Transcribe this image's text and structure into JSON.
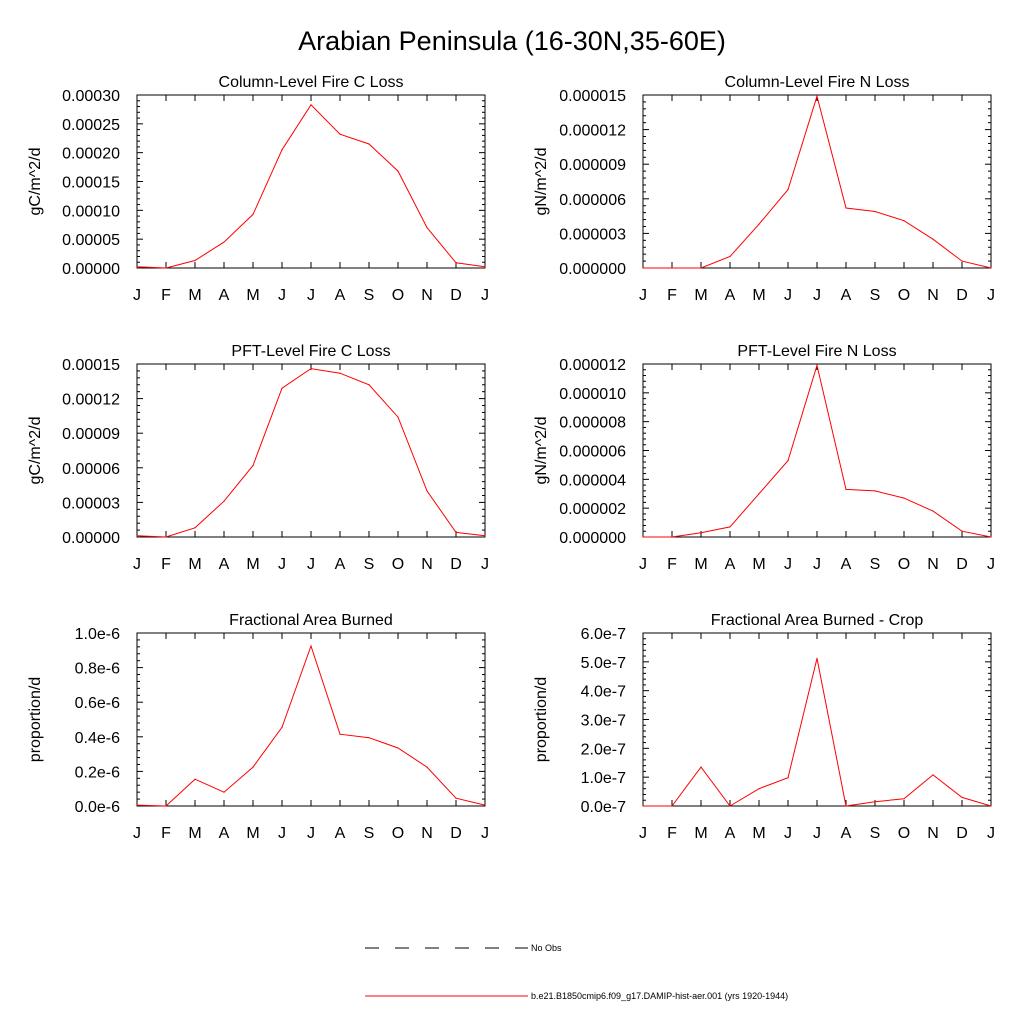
{
  "page": {
    "main_title": "Arabian Peninsula (16-30N,35-60E)"
  },
  "legend": {
    "entries": [
      {
        "label": "No Obs",
        "style": "dashed",
        "color": "#000000"
      },
      {
        "label": "b.e21.B1850cmip6.f09_g17.DAMIP-hist-aer.001 (yrs 1920-1944)",
        "style": "solid",
        "color": "#ff0000"
      }
    ]
  },
  "colors": {
    "series": "#ff0000",
    "axis": "#000000"
  },
  "chart_data": [
    {
      "type": "line",
      "title": "Column-Level Fire C Loss",
      "xlabel": "",
      "ylabel": "gC/m^2/d",
      "categories": [
        "J",
        "F",
        "M",
        "A",
        "M",
        "J",
        "J",
        "A",
        "S",
        "O",
        "N",
        "D",
        "J"
      ],
      "ylim": [
        0,
        0.0003
      ],
      "yticks": [
        "0.00000",
        "0.00005",
        "0.00010",
        "0.00015",
        "0.00020",
        "0.00025",
        "0.00030"
      ],
      "series": [
        {
          "values": [
            2e-06,
            0.0,
            1.3e-05,
            4.5e-05,
            9.3e-05,
            0.000205,
            0.000283,
            0.000232,
            0.000215,
            0.000168,
            7e-05,
            9e-06,
            2e-06
          ]
        }
      ]
    },
    {
      "type": "line",
      "title": "Column-Level Fire N Loss",
      "xlabel": "",
      "ylabel": "gN/m^2/d",
      "categories": [
        "J",
        "F",
        "M",
        "A",
        "M",
        "J",
        "J",
        "A",
        "S",
        "O",
        "N",
        "D",
        "J"
      ],
      "ylim": [
        0,
        1.5e-05
      ],
      "yticks": [
        "0.000000",
        "0.000003",
        "0.000006",
        "0.000009",
        "0.000012",
        "0.000015"
      ],
      "series": [
        {
          "values": [
            0.0,
            0.0,
            4e-10,
            1e-06,
            3.8e-06,
            6.8e-06,
            1.49e-05,
            5.2e-06,
            4.9e-06,
            4.1e-06,
            2.5e-06,
            6e-07,
            0.0
          ]
        }
      ]
    },
    {
      "type": "line",
      "title": "PFT-Level Fire C Loss",
      "xlabel": "",
      "ylabel": "gC/m^2/d",
      "categories": [
        "J",
        "F",
        "M",
        "A",
        "M",
        "J",
        "J",
        "A",
        "S",
        "O",
        "N",
        "D",
        "J"
      ],
      "ylim": [
        0,
        0.00015
      ],
      "yticks": [
        "0.00000",
        "0.00003",
        "0.00006",
        "0.00009",
        "0.00012",
        "0.00015"
      ],
      "series": [
        {
          "values": [
            1e-06,
            0.0,
            8e-06,
            3.1e-05,
            6.2e-05,
            0.000129,
            0.000146,
            0.000142,
            0.000132,
            0.000104,
            4e-05,
            4e-06,
            1e-06
          ]
        }
      ]
    },
    {
      "type": "line",
      "title": "PFT-Level Fire N Loss",
      "xlabel": "",
      "ylabel": "gN/m^2/d",
      "categories": [
        "J",
        "F",
        "M",
        "A",
        "M",
        "J",
        "J",
        "A",
        "S",
        "O",
        "N",
        "D",
        "J"
      ],
      "ylim": [
        0,
        1.2e-05
      ],
      "yticks": [
        "0.000000",
        "0.000002",
        "0.000004",
        "0.000006",
        "0.000008",
        "0.000010",
        "0.000012"
      ],
      "series": [
        {
          "values": [
            0.0,
            0.0,
            3e-07,
            7e-07,
            3e-06,
            5.3e-06,
            1.19e-05,
            3.3e-06,
            3.2e-06,
            2.7e-06,
            1.8e-06,
            4e-07,
            0.0
          ]
        }
      ]
    },
    {
      "type": "line",
      "title": "Fractional Area Burned",
      "xlabel": "",
      "ylabel": "proportion/d",
      "categories": [
        "J",
        "F",
        "M",
        "A",
        "M",
        "J",
        "J",
        "A",
        "S",
        "O",
        "N",
        "D",
        "J"
      ],
      "ylim": [
        0,
        1e-06
      ],
      "yticks": [
        "0.0e-6",
        "0.2e-6",
        "0.4e-6",
        "0.6e-6",
        "0.8e-6",
        "1.0e-6"
      ],
      "series": [
        {
          "values": [
            5e-09,
            0.0,
            1.55e-07,
            8e-08,
            2.25e-07,
            4.55e-07,
            9.25e-07,
            4.15e-07,
            3.95e-07,
            3.35e-07,
            2.25e-07,
            4.5e-08,
            5e-09
          ]
        }
      ]
    },
    {
      "type": "line",
      "title": "Fractional Area Burned - Crop",
      "xlabel": "",
      "ylabel": "proportion/d",
      "categories": [
        "J",
        "F",
        "M",
        "A",
        "M",
        "J",
        "J",
        "A",
        "S",
        "O",
        "N",
        "D",
        "J"
      ],
      "ylim": [
        0,
        6e-07
      ],
      "yticks": [
        "0.0e-7",
        "1.0e-7",
        "2.0e-7",
        "3.0e-7",
        "4.0e-7",
        "5.0e-7",
        "6.0e-7"
      ],
      "series": [
        {
          "values": [
            0.0,
            0.0,
            1.35e-07,
            0.0,
            6e-08,
            9.8e-08,
            5.12e-07,
            0.0,
            1.5e-08,
            2.5e-08,
            1.08e-07,
            3e-08,
            0.0
          ]
        }
      ]
    }
  ]
}
